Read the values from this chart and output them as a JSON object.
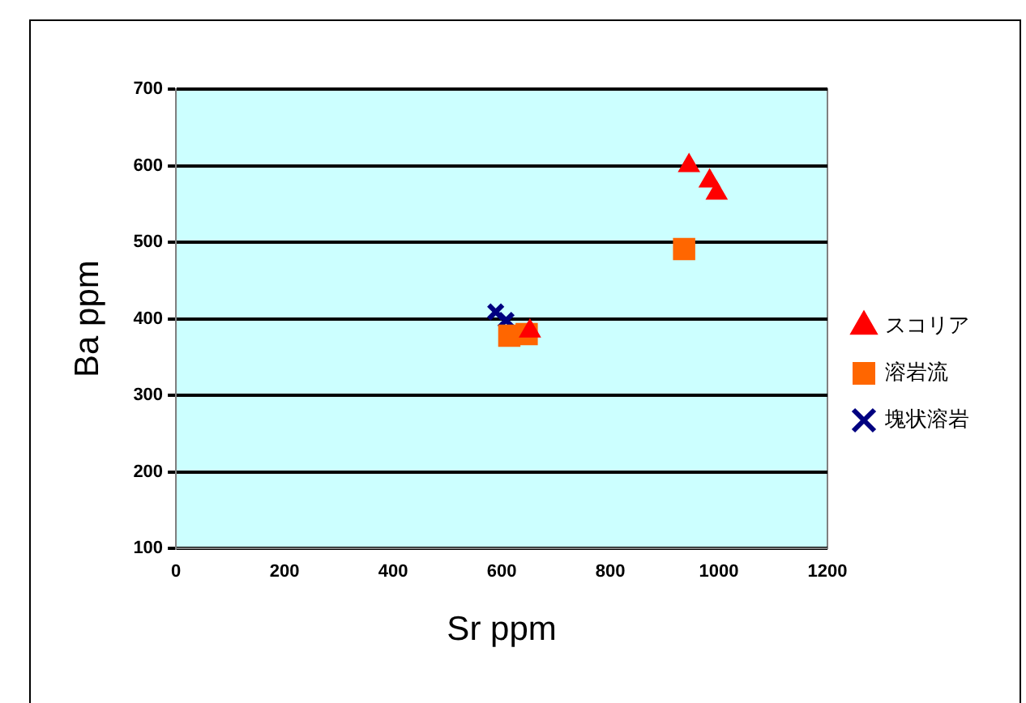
{
  "chart_data": {
    "type": "scatter",
    "xlabel": "Sr ppm",
    "ylabel": "Ba ppm",
    "xlim": [
      0,
      1200
    ],
    "xticks": [
      0,
      200,
      400,
      600,
      800,
      1000,
      1200
    ],
    "ylim": [
      100,
      700
    ],
    "yticks": [
      100,
      200,
      300,
      400,
      500,
      600,
      700
    ],
    "grid": "y",
    "legend": "right",
    "series": [
      {
        "name": "スコリア",
        "color": "#ff0000",
        "marker": "triangle",
        "x": [
          945,
          983,
          996,
          652
        ],
        "values": [
          600,
          580,
          564,
          384
        ]
      },
      {
        "name": "溶岩流",
        "color": "#ff6600",
        "marker": "square",
        "x": [
          936,
          614,
          646
        ],
        "values": [
          491,
          378,
          380
        ]
      },
      {
        "name": "塊状溶岩",
        "color": "#000080",
        "marker": "cross",
        "x": [
          589,
          608
        ],
        "values": [
          409,
          398
        ]
      }
    ]
  }
}
